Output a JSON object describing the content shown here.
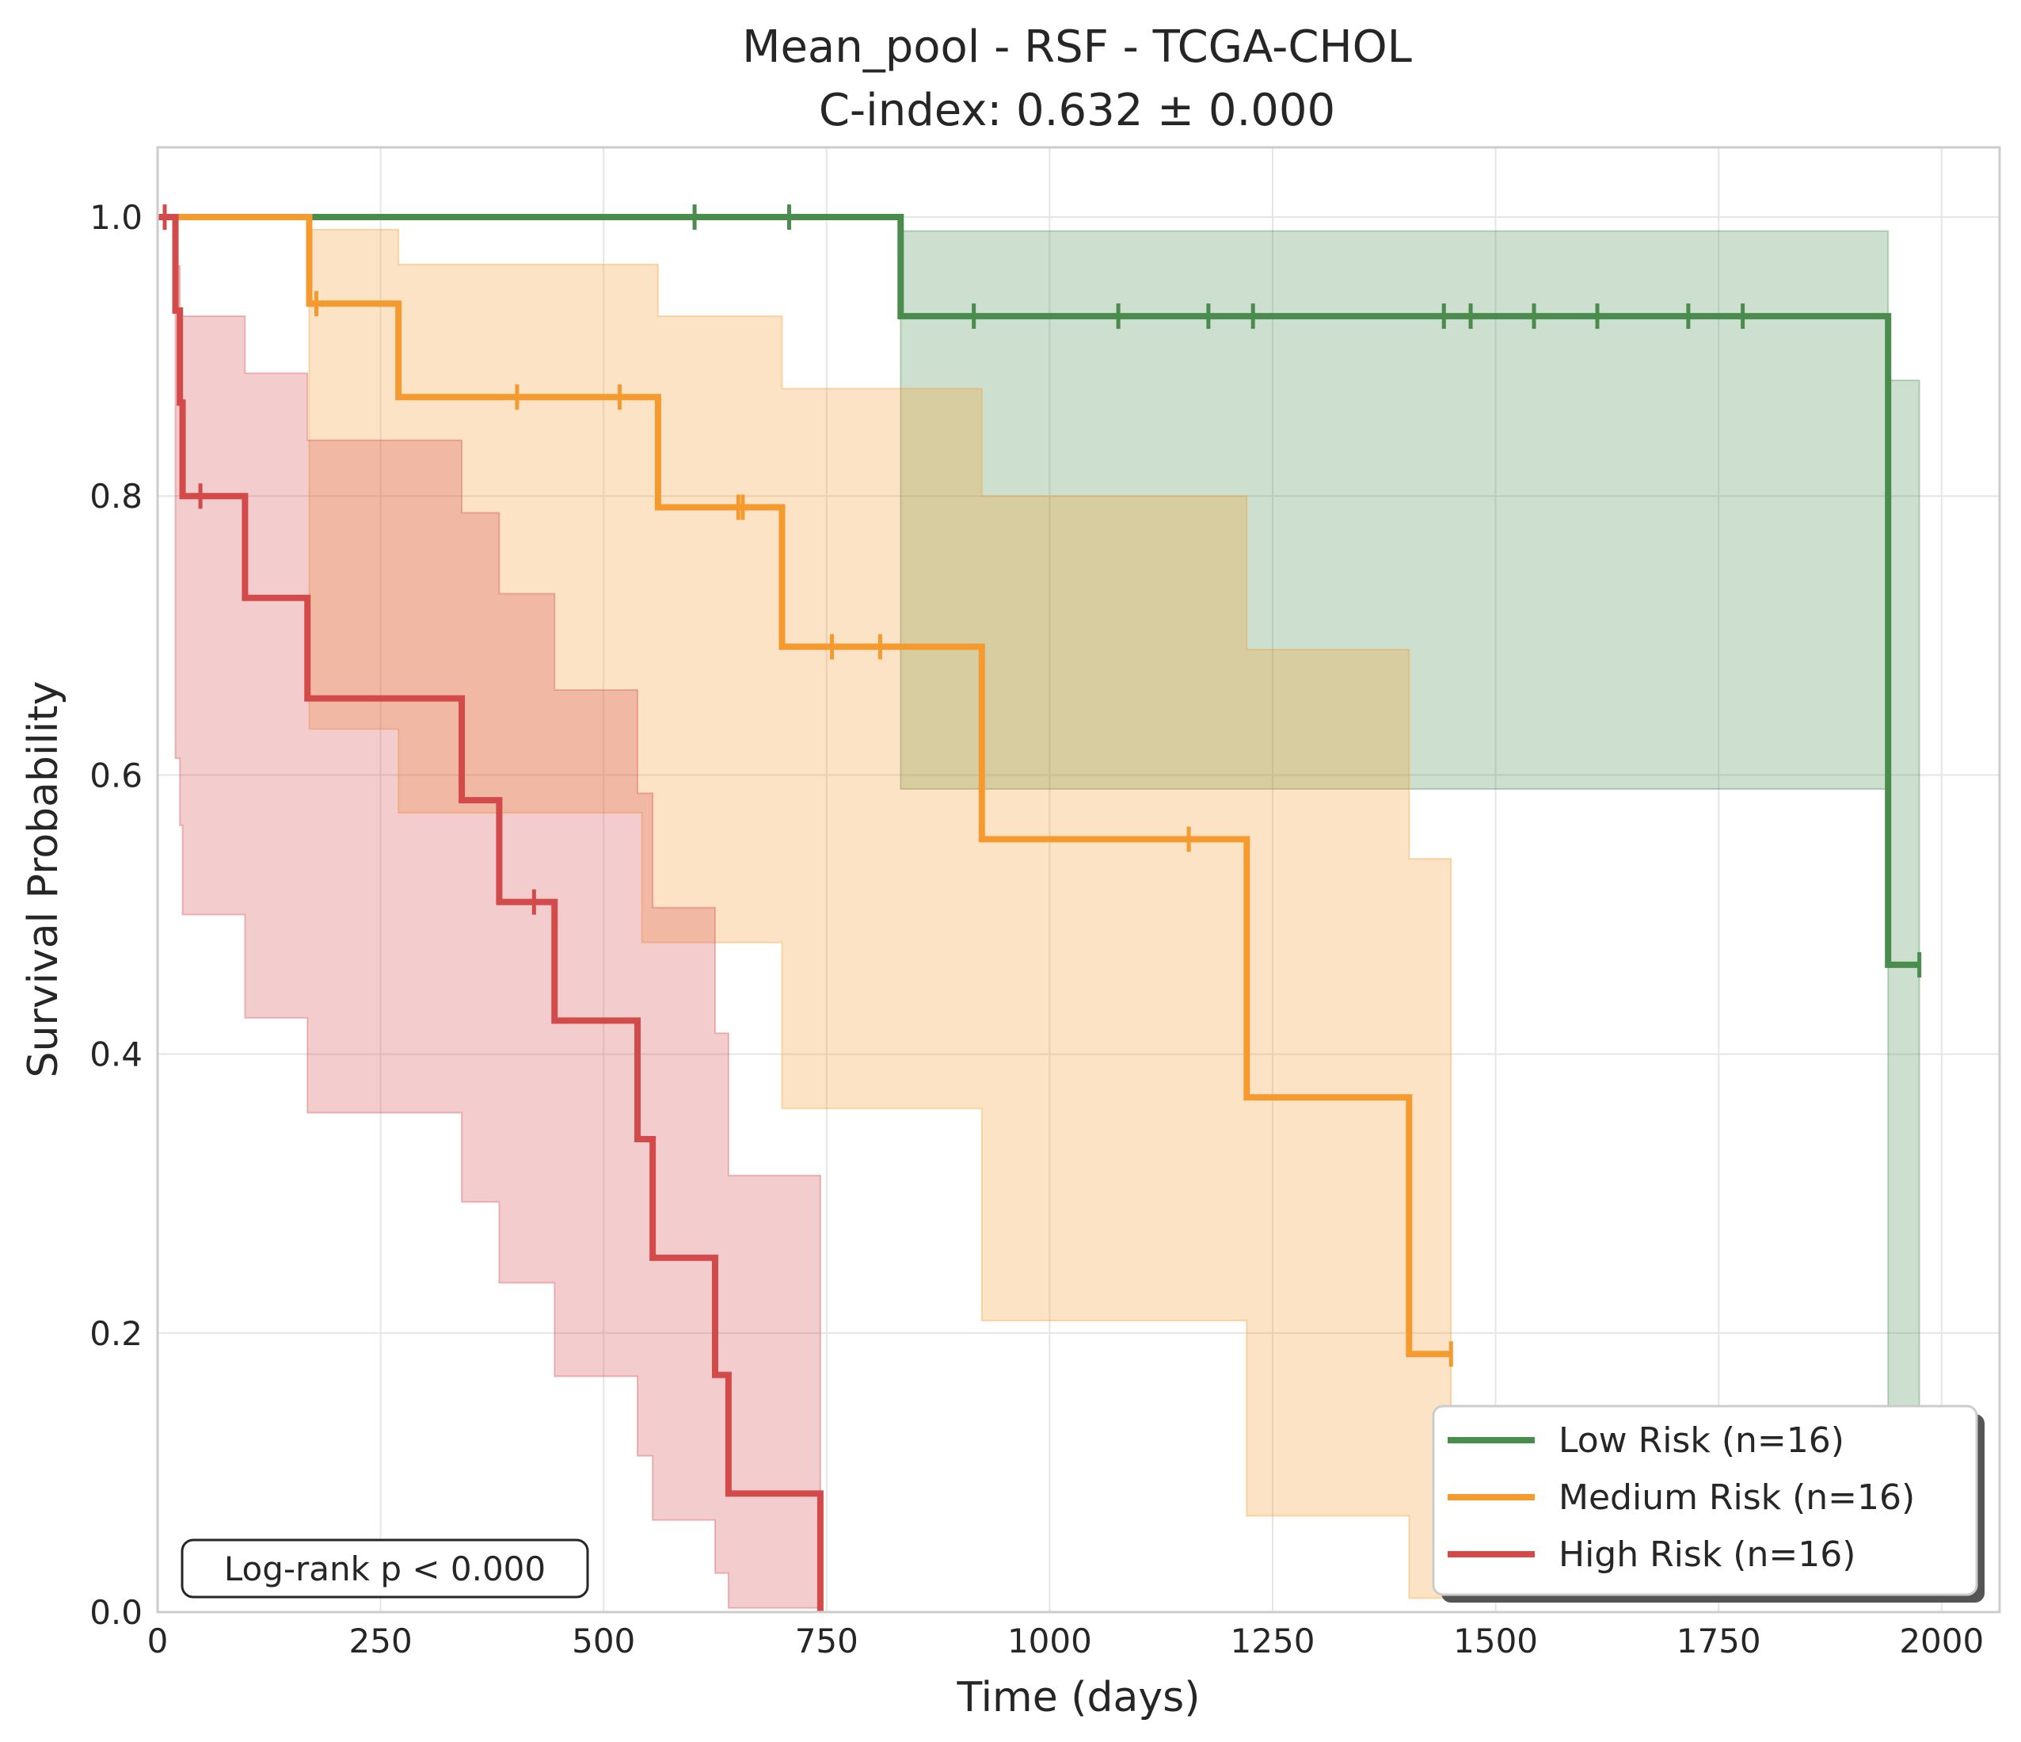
{
  "chart_data": {
    "type": "line",
    "subtype": "kaplan-meier survival curves with confidence bands",
    "title": "Mean_pool - RSF - TCGA-CHOL",
    "subtitle": "C-index: 0.632 ± 0.000",
    "xlabel": "Time (days)",
    "ylabel": "Survival Probability",
    "xlim": [
      0,
      2065
    ],
    "ylim": [
      0,
      1.05
    ],
    "xticks": [
      0,
      250,
      500,
      750,
      1000,
      1250,
      1500,
      1750,
      2000
    ],
    "xtick_labels": [
      "0",
      "250",
      "500",
      "750",
      "1000",
      "1250",
      "1500",
      "1750",
      "2000"
    ],
    "yticks": [
      0.0,
      0.2,
      0.4,
      0.6,
      0.8,
      1.0
    ],
    "ytick_labels": [
      "0.0",
      "0.2",
      "0.4",
      "0.6",
      "0.8",
      "1.0"
    ],
    "grid": true,
    "legend_position": "bottom-right",
    "annotation": "Log-rank p < 0.000",
    "series": [
      {
        "name": "Low Risk (n=16)",
        "color": "#4a8c4e",
        "steps": [
          [
            0,
            1.0
          ],
          [
            833,
            0.929
          ],
          [
            1940,
            0.464
          ],
          [
            1975,
            0.464
          ]
        ],
        "ci": [
          [
            833,
            0.59,
            0.99
          ],
          [
            1940,
            0.01,
            0.883
          ],
          [
            1975,
            0.01,
            0.883
          ]
        ],
        "censored": [
          [
            602,
            1.0
          ],
          [
            708,
            1.0
          ],
          [
            915,
            0.929
          ],
          [
            1077,
            0.929
          ],
          [
            1178,
            0.929
          ],
          [
            1228,
            0.929
          ],
          [
            1442,
            0.929
          ],
          [
            1472,
            0.929
          ],
          [
            1543,
            0.929
          ],
          [
            1614,
            0.929
          ],
          [
            1716,
            0.929
          ],
          [
            1777,
            0.929
          ],
          [
            1975,
            0.464
          ]
        ]
      },
      {
        "name": "Medium Risk (n=16)",
        "color": "#f59a2e",
        "steps": [
          [
            0,
            1.0
          ],
          [
            170,
            0.938
          ],
          [
            270,
            0.871
          ],
          [
            561,
            0.792
          ],
          [
            700,
            0.692
          ],
          [
            924,
            0.554
          ],
          [
            1221,
            0.369
          ],
          [
            1403,
            0.185
          ],
          [
            1450,
            0.185
          ]
        ],
        "ci": [
          [
            170,
            0.633,
            0.991
          ],
          [
            270,
            0.573,
            0.966
          ],
          [
            543,
            0.48,
            0.966
          ],
          [
            561,
            0.48,
            0.929
          ],
          [
            700,
            0.361,
            0.877
          ],
          [
            924,
            0.209,
            0.8
          ],
          [
            1221,
            0.069,
            0.69
          ],
          [
            1403,
            0.01,
            0.54
          ],
          [
            1450,
            0.01,
            0.54
          ]
        ],
        "censored": [
          [
            178,
            0.938
          ],
          [
            403,
            0.871
          ],
          [
            518,
            0.871
          ],
          [
            651,
            0.792
          ],
          [
            656,
            0.792
          ],
          [
            756,
            0.692
          ],
          [
            810,
            0.692
          ],
          [
            1156,
            0.554
          ],
          [
            1450,
            0.185
          ]
        ]
      },
      {
        "name": "High Risk (n=16)",
        "color": "#d34a4a",
        "steps": [
          [
            0,
            1.0
          ],
          [
            20,
            0.933
          ],
          [
            25,
            0.867
          ],
          [
            28,
            0.8
          ],
          [
            98,
            0.727
          ],
          [
            168,
            0.655
          ],
          [
            341,
            0.582
          ],
          [
            383,
            0.509
          ],
          [
            445,
            0.424
          ],
          [
            538,
            0.339
          ],
          [
            555,
            0.254
          ],
          [
            625,
            0.17
          ],
          [
            640,
            0.085
          ],
          [
            743,
            0.0
          ]
        ],
        "ci": [
          [
            20,
            0.612,
            0.965
          ],
          [
            25,
            0.564,
            0.929
          ],
          [
            28,
            0.5,
            0.929
          ],
          [
            98,
            0.426,
            0.888
          ],
          [
            168,
            0.358,
            0.84
          ],
          [
            341,
            0.294,
            0.788
          ],
          [
            383,
            0.236,
            0.73
          ],
          [
            445,
            0.169,
            0.661
          ],
          [
            538,
            0.112,
            0.587
          ],
          [
            555,
            0.066,
            0.505
          ],
          [
            625,
            0.028,
            0.415
          ],
          [
            640,
            0.003,
            0.313
          ],
          [
            743,
            0.003,
            0.313
          ]
        ],
        "censored": [
          [
            8,
            1.0
          ],
          [
            48,
            0.8
          ],
          [
            422,
            0.509
          ]
        ]
      }
    ]
  }
}
